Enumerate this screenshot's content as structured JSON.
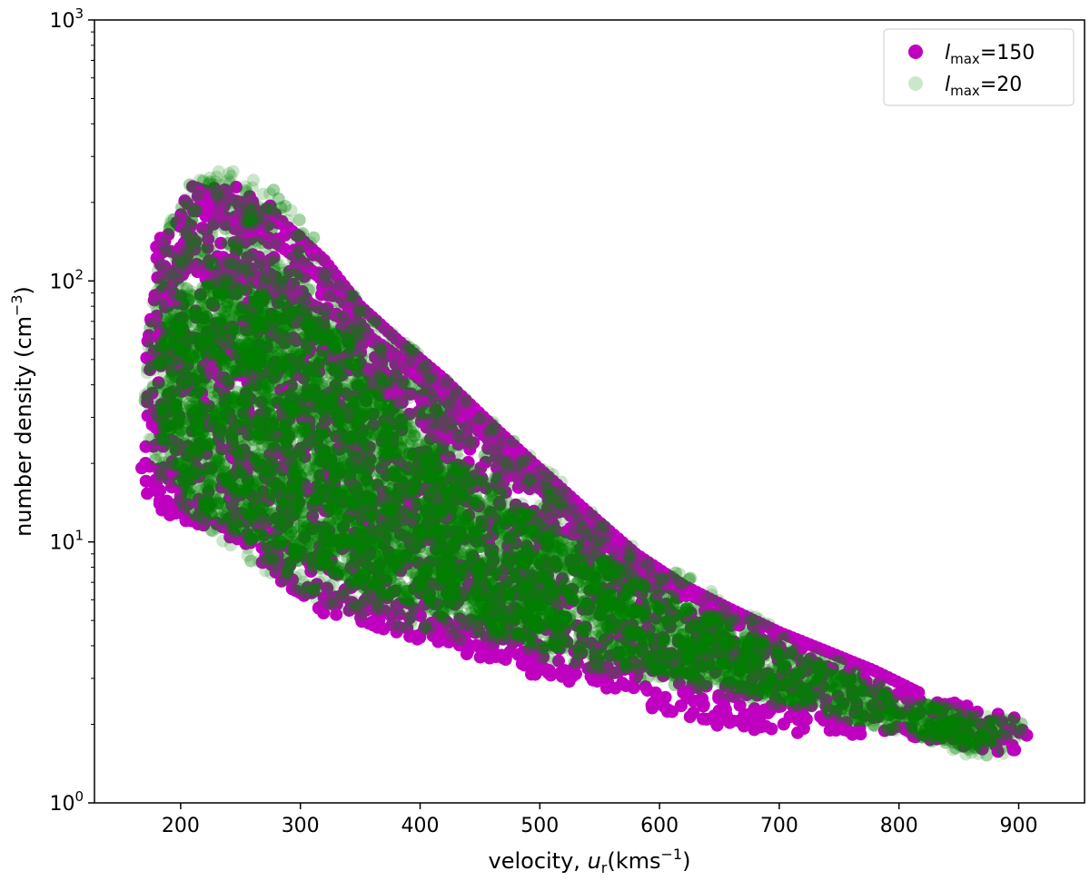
{
  "chart_data": {
    "type": "scatter",
    "xlabel": {
      "pre": "velocity, ",
      "var": "u",
      "sub": "r",
      "unit_open": "(kms",
      "unit_sup": "−1",
      "unit_close": ")"
    },
    "ylabel": {
      "text": "number density (cm",
      "sup": "−3",
      "close": ")"
    },
    "xlim": [
      128,
      955
    ],
    "ylim": [
      1,
      1000
    ],
    "yscale": "log",
    "xticks": [
      200,
      300,
      400,
      500,
      600,
      700,
      800,
      900
    ],
    "xtick_labels": [
      "200",
      "300",
      "400",
      "500",
      "600",
      "700",
      "800",
      "900"
    ],
    "yticks": [
      1,
      10,
      100,
      1000
    ],
    "ytick_labels": [
      {
        "base": "10",
        "exp": "0"
      },
      {
        "base": "10",
        "exp": "1"
      },
      {
        "base": "10",
        "exp": "2"
      },
      {
        "base": "10",
        "exp": "3"
      }
    ],
    "grid": false,
    "legend_position": "top-right",
    "series": [
      {
        "name": "l_max=150",
        "label": {
          "var": "l",
          "sub": "max",
          "suffix": "=150"
        },
        "color": "#c000c0",
        "opacity": 1.0,
        "envelope": [
          [
            165,
            18
          ],
          [
            170,
            30
          ],
          [
            172,
            60
          ],
          [
            180,
            140
          ],
          [
            190,
            180
          ],
          [
            210,
            220
          ],
          [
            235,
            240
          ],
          [
            260,
            220
          ],
          [
            285,
            180
          ],
          [
            305,
            140
          ],
          [
            330,
            100
          ],
          [
            350,
            65
          ],
          [
            380,
            50
          ],
          [
            420,
            40
          ],
          [
            460,
            28
          ],
          [
            500,
            19
          ],
          [
            540,
            13
          ],
          [
            580,
            8.5
          ],
          [
            620,
            6.5
          ],
          [
            660,
            5.2
          ],
          [
            700,
            4.4
          ],
          [
            740,
            3.6
          ],
          [
            780,
            3.0
          ],
          [
            820,
            2.55
          ],
          [
            860,
            2.35
          ],
          [
            895,
            2.2
          ],
          [
            915,
            1.9
          ],
          [
            915,
            1.6
          ],
          [
            880,
            1.55
          ],
          [
            840,
            1.7
          ],
          [
            800,
            1.8
          ],
          [
            760,
            1.82
          ],
          [
            720,
            1.85
          ],
          [
            680,
            1.9
          ],
          [
            640,
            2.0
          ],
          [
            600,
            2.25
          ],
          [
            560,
            2.6
          ],
          [
            520,
            2.9
          ],
          [
            480,
            3.2
          ],
          [
            440,
            3.7
          ],
          [
            400,
            4.2
          ],
          [
            360,
            4.6
          ],
          [
            320,
            5.3
          ],
          [
            290,
            6.5
          ],
          [
            260,
            8.5
          ],
          [
            240,
            10.5
          ],
          [
            220,
            11.5
          ],
          [
            200,
            12
          ],
          [
            185,
            13
          ],
          [
            170,
            15
          ]
        ],
        "ridges": [
          [
            [
              210,
              230
            ],
            [
              250,
              200
            ],
            [
              290,
              160
            ],
            [
              320,
              120
            ],
            [
              350,
              80
            ],
            [
              380,
              60
            ],
            [
              420,
              42
            ],
            [
              460,
              28
            ],
            [
              500,
              19
            ],
            [
              540,
              13
            ],
            [
              580,
              9
            ],
            [
              620,
              6.8
            ],
            [
              660,
              5.5
            ],
            [
              700,
              4.5
            ],
            [
              740,
              3.8
            ],
            [
              780,
              3.2
            ],
            [
              820,
              2.6
            ]
          ],
          [
            [
              230,
              180
            ],
            [
              270,
              150
            ],
            [
              300,
              120
            ],
            [
              330,
              90
            ],
            [
              360,
              60
            ],
            [
              400,
              45
            ],
            [
              440,
              30
            ],
            [
              480,
              20
            ],
            [
              520,
              14
            ],
            [
              560,
              10
            ],
            [
              600,
              7.2
            ],
            [
              640,
              5.8
            ]
          ],
          [
            [
              220,
              110
            ],
            [
              260,
              100
            ],
            [
              300,
              85
            ],
            [
              340,
              70
            ],
            [
              380,
              50
            ],
            [
              420,
              35
            ],
            [
              460,
              24
            ],
            [
              500,
              16
            ],
            [
              540,
              11
            ],
            [
              580,
              8
            ],
            [
              620,
              6.2
            ]
          ]
        ]
      },
      {
        "name": "l_max=20",
        "label": {
          "var": "l",
          "sub": "max",
          "suffix": "=20"
        },
        "color": "#008000",
        "opacity": 0.2,
        "envelope": [
          [
            170,
            35
          ],
          [
            175,
            80
          ],
          [
            185,
            150
          ],
          [
            200,
            220
          ],
          [
            220,
            265
          ],
          [
            235,
            278
          ],
          [
            255,
            265
          ],
          [
            280,
            220
          ],
          [
            300,
            170
          ],
          [
            320,
            130
          ],
          [
            340,
            95
          ],
          [
            360,
            72
          ],
          [
            380,
            62
          ],
          [
            400,
            52
          ],
          [
            440,
            36
          ],
          [
            480,
            24
          ],
          [
            520,
            17
          ],
          [
            560,
            11
          ],
          [
            600,
            8.5
          ],
          [
            640,
            6.8
          ],
          [
            680,
            5.2
          ],
          [
            720,
            4.2
          ],
          [
            760,
            3.3
          ],
          [
            800,
            2.6
          ],
          [
            840,
            2.35
          ],
          [
            880,
            2.2
          ],
          [
            905,
            2.0
          ],
          [
            905,
            1.6
          ],
          [
            880,
            1.5
          ],
          [
            840,
            1.55
          ],
          [
            820,
            1.7
          ],
          [
            790,
            1.95
          ],
          [
            750,
            2.15
          ],
          [
            700,
            2.35
          ],
          [
            650,
            2.6
          ],
          [
            600,
            2.9
          ],
          [
            560,
            3.1
          ],
          [
            520,
            3.4
          ],
          [
            480,
            3.8
          ],
          [
            440,
            4.1
          ],
          [
            400,
            4.5
          ],
          [
            360,
            5.0
          ],
          [
            330,
            5.5
          ],
          [
            300,
            6.2
          ],
          [
            270,
            7.5
          ],
          [
            245,
            9
          ],
          [
            220,
            11
          ],
          [
            200,
            14
          ],
          [
            185,
            17
          ],
          [
            175,
            22
          ]
        ],
        "core": [
          [
            180,
            60
          ],
          [
            200,
            95
          ],
          [
            230,
            100
          ],
          [
            260,
            95
          ],
          [
            300,
            80
          ],
          [
            340,
            60
          ],
          [
            370,
            35
          ],
          [
            420,
            22
          ],
          [
            480,
            14
          ],
          [
            540,
            9.5
          ],
          [
            600,
            6.5
          ],
          [
            660,
            4.8
          ],
          [
            720,
            3.6
          ],
          [
            780,
            2.8
          ],
          [
            840,
            2.25
          ],
          [
            880,
            2.1
          ],
          [
            895,
            1.75
          ],
          [
            860,
            1.6
          ],
          [
            800,
            1.85
          ],
          [
            740,
            2.2
          ],
          [
            680,
            2.6
          ],
          [
            620,
            3.0
          ],
          [
            560,
            3.5
          ],
          [
            500,
            4.0
          ],
          [
            440,
            5.0
          ],
          [
            380,
            6.0
          ],
          [
            320,
            7.5
          ],
          [
            270,
            9.5
          ],
          [
            230,
            12
          ],
          [
            200,
            16
          ],
          [
            185,
            25
          ]
        ]
      }
    ]
  }
}
